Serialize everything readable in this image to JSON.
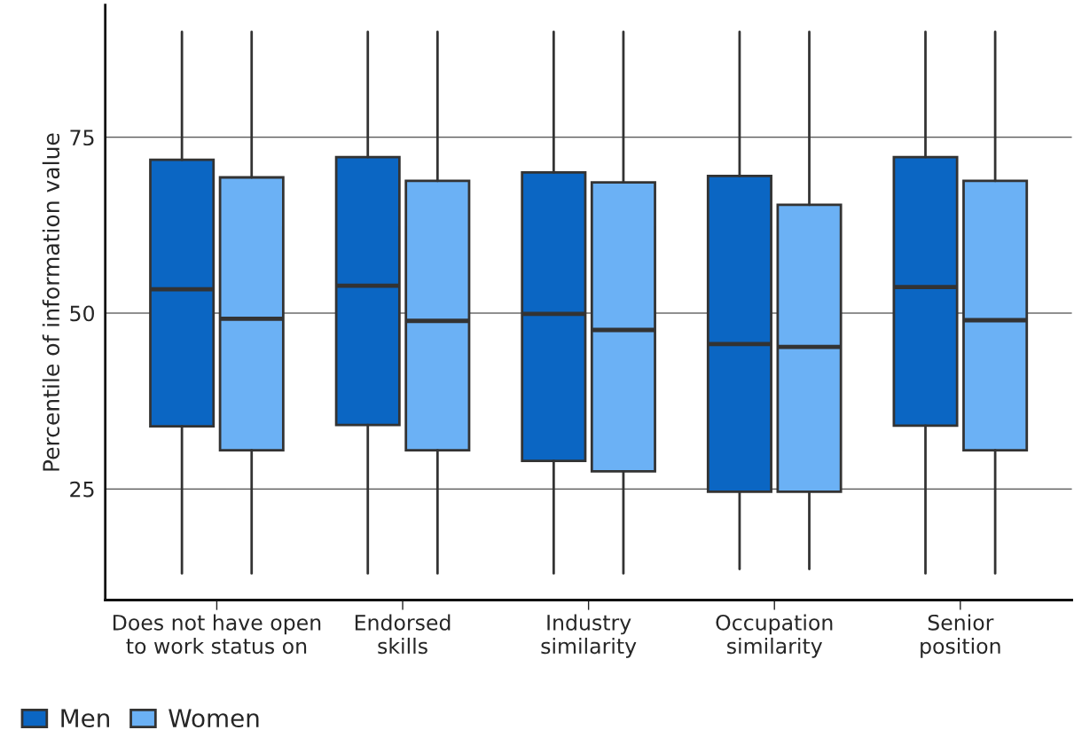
{
  "chart_data": {
    "type": "box",
    "ylabel": "Percentile of information value",
    "categories": [
      "Does not have open\nto work status on",
      "Endorsed\nskills",
      "Industry\nsimilarity",
      "Occupation\nsimilarity",
      "Senior\nposition"
    ],
    "series": [
      {
        "name": "Men",
        "color": "#0b66c3",
        "boxes": [
          {
            "low": 13,
            "q1": 33.9,
            "median": 53.4,
            "q3": 71.8,
            "high": 90
          },
          {
            "low": 13,
            "q1": 34.1,
            "median": 53.9,
            "q3": 72.2,
            "high": 90
          },
          {
            "low": 13,
            "q1": 29.0,
            "median": 49.9,
            "q3": 70.0,
            "high": 90
          },
          {
            "low": 13.6,
            "q1": 24.6,
            "median": 45.6,
            "q3": 69.5,
            "high": 90
          },
          {
            "low": 13,
            "q1": 34.0,
            "median": 53.7,
            "q3": 72.2,
            "high": 90
          }
        ]
      },
      {
        "name": "Women",
        "color": "#6bb1f5",
        "boxes": [
          {
            "low": 13,
            "q1": 30.5,
            "median": 49.2,
            "q3": 69.3,
            "high": 90
          },
          {
            "low": 13,
            "q1": 30.5,
            "median": 48.9,
            "q3": 68.8,
            "high": 90
          },
          {
            "low": 13,
            "q1": 27.5,
            "median": 47.6,
            "q3": 68.6,
            "high": 90
          },
          {
            "low": 13.6,
            "q1": 24.6,
            "median": 45.2,
            "q3": 65.4,
            "high": 90
          },
          {
            "low": 13,
            "q1": 30.5,
            "median": 49.0,
            "q3": 68.8,
            "high": 90
          }
        ]
      }
    ],
    "ylim": [
      9.2,
      93.8
    ],
    "yticks": [
      25,
      50,
      75
    ],
    "grid": "y",
    "legend": "bottom left"
  }
}
